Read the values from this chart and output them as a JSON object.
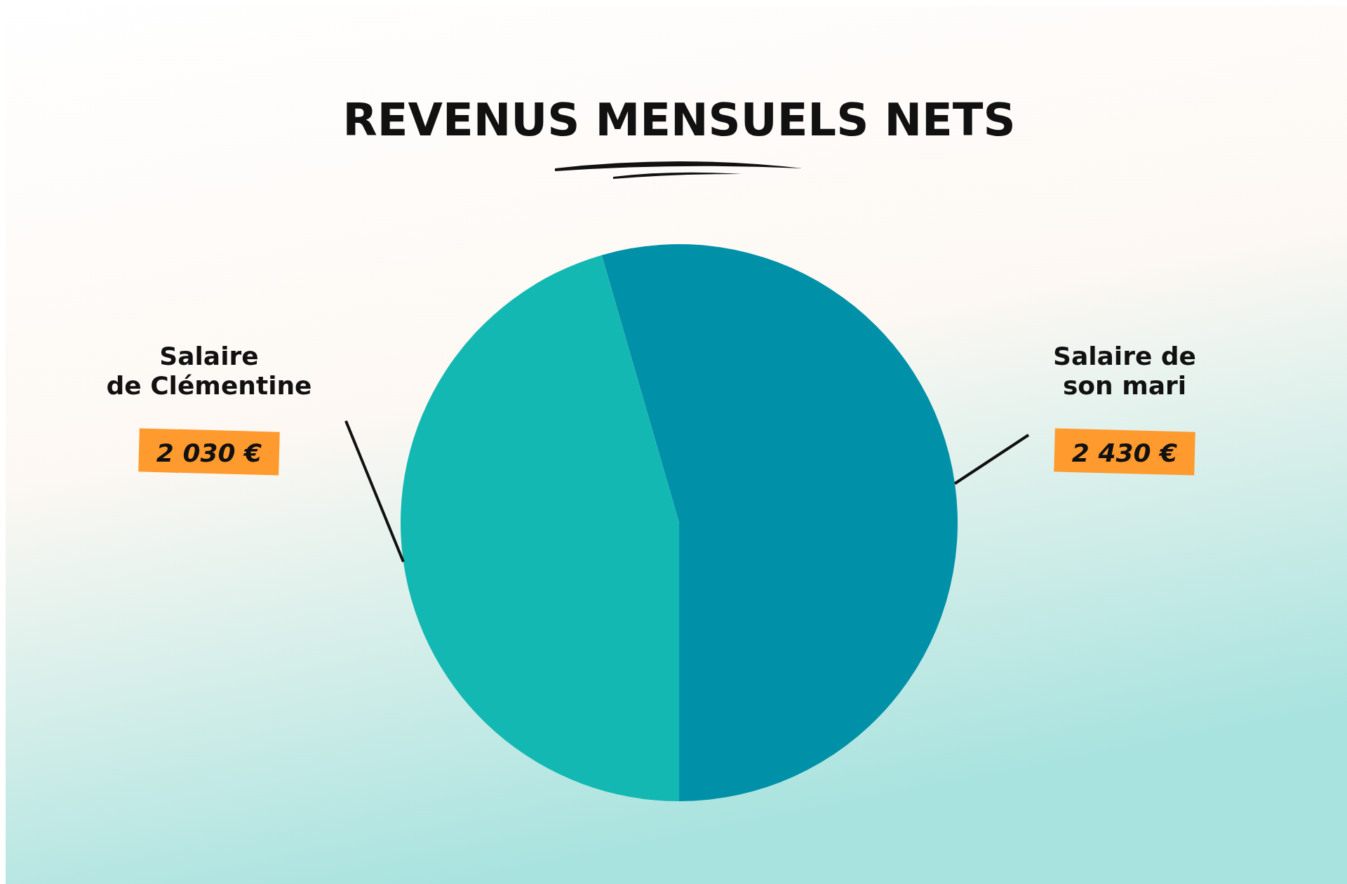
{
  "chart_data": {
    "type": "pie",
    "title": "REVENUS MENSUELS NETS",
    "categories": [
      "Salaire de Clémentine",
      "Salaire de son mari"
    ],
    "values": [
      2030,
      2430
    ],
    "value_labels": [
      "2 030 €",
      "2 430 €"
    ],
    "colors": [
      "#14b8b3",
      "#0091a8"
    ]
  }
}
